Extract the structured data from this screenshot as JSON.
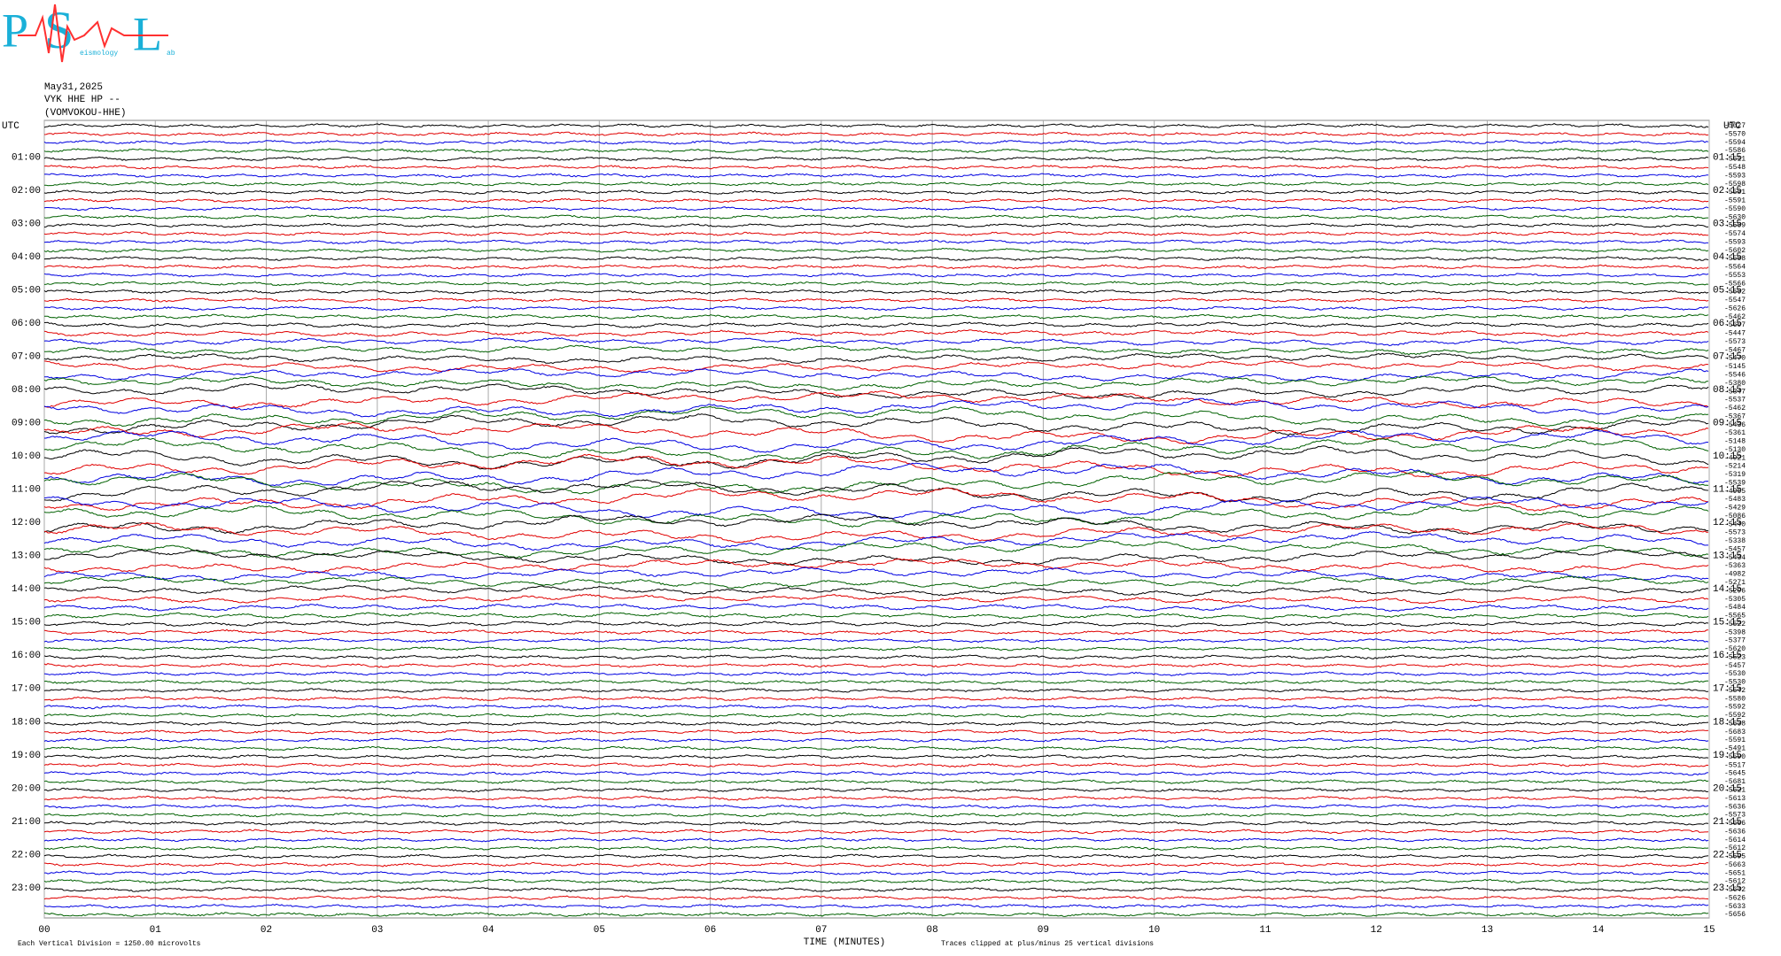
{
  "logo": {
    "letters": [
      "P",
      "S",
      "L"
    ],
    "small": [
      "eismology",
      "ab"
    ]
  },
  "header": {
    "date": "May31,2025",
    "channel": "VYK HHE HP --",
    "station": "(VOMVOKOU-HHE)"
  },
  "utc_left": "UTC",
  "utc_right": "UTC",
  "left_labels": [
    "01:00",
    "02:00",
    "03:00",
    "04:00",
    "05:00",
    "06:00",
    "07:00",
    "08:00",
    "09:00",
    "10:00",
    "11:00",
    "12:00",
    "13:00",
    "14:00",
    "15:00",
    "16:00",
    "17:00",
    "18:00",
    "19:00",
    "20:00",
    "21:00",
    "22:00",
    "23:00"
  ],
  "right_labels": [
    "01:15",
    "02:15",
    "03:15",
    "04:15",
    "05:15",
    "06:15",
    "07:15",
    "08:15",
    "09:15",
    "10:15",
    "11:15",
    "12:15",
    "13:15",
    "14:15",
    "15:15",
    "16:15",
    "17:15",
    "18:15",
    "19:15",
    "20:15",
    "21:15",
    "22:15",
    "23:15"
  ],
  "offsets": [
    -5627,
    -5570,
    -5594,
    -5586,
    -5611,
    -5548,
    -5593,
    -5598,
    -5581,
    -5591,
    -5590,
    -5630,
    -5589,
    -5574,
    -5593,
    -5602,
    -5588,
    -5564,
    -5553,
    -5566,
    -5582,
    -5547,
    -5626,
    -5462,
    -5607,
    -5447,
    -5573,
    -5467,
    -5470,
    -5145,
    -5546,
    -5380,
    -5347,
    -5537,
    -5462,
    -5367,
    -5436,
    -5361,
    -5148,
    -5130,
    -4921,
    -5214,
    -5319,
    -5539,
    -4965,
    -5483,
    -5429,
    -5086,
    -5440,
    -5573,
    -5338,
    -5457,
    -5434,
    -5363,
    -4982,
    -5271,
    -5296,
    -5305,
    -5484,
    -5565,
    -5522,
    -5398,
    -5377,
    -5620,
    -5523,
    -5457,
    -5530,
    -5530,
    -5542,
    -5580,
    -5592,
    -5592,
    -5638,
    -5683,
    -5591,
    -5491,
    -5590,
    -5517,
    -5645,
    -5681,
    -5621,
    -5613,
    -5636,
    -5573,
    -5666,
    -5636,
    -5614,
    -5612,
    -5595,
    -5663,
    -5651,
    -5612,
    -5642,
    -5626,
    -5633,
    -5656
  ],
  "trace_colors": [
    "#000000",
    "#e00000",
    "#0000e0",
    "#006000"
  ],
  "x_axis": {
    "label": "TIME (MINUTES)",
    "xlim": [
      0,
      15
    ],
    "ticks": [
      {
        "value": 0,
        "label": "00"
      },
      {
        "value": 1,
        "label": "01"
      },
      {
        "value": 2,
        "label": "02"
      },
      {
        "value": 3,
        "label": "03"
      },
      {
        "value": 4,
        "label": "04"
      },
      {
        "value": 5,
        "label": "05"
      },
      {
        "value": 6,
        "label": "06"
      },
      {
        "value": 7,
        "label": "07"
      },
      {
        "value": 8,
        "label": "08"
      },
      {
        "value": 9,
        "label": "09"
      },
      {
        "value": 10,
        "label": "10"
      },
      {
        "value": 11,
        "label": "11"
      },
      {
        "value": 12,
        "label": "12"
      },
      {
        "value": 13,
        "label": "13"
      },
      {
        "value": 14,
        "label": "14"
      },
      {
        "value": 15,
        "label": "15"
      }
    ]
  },
  "footer": {
    "scale": "Each Vertical Division = 1250.00 microvolts",
    "clip": "Traces clipped at plus/minus 25 vertical divisions"
  }
}
